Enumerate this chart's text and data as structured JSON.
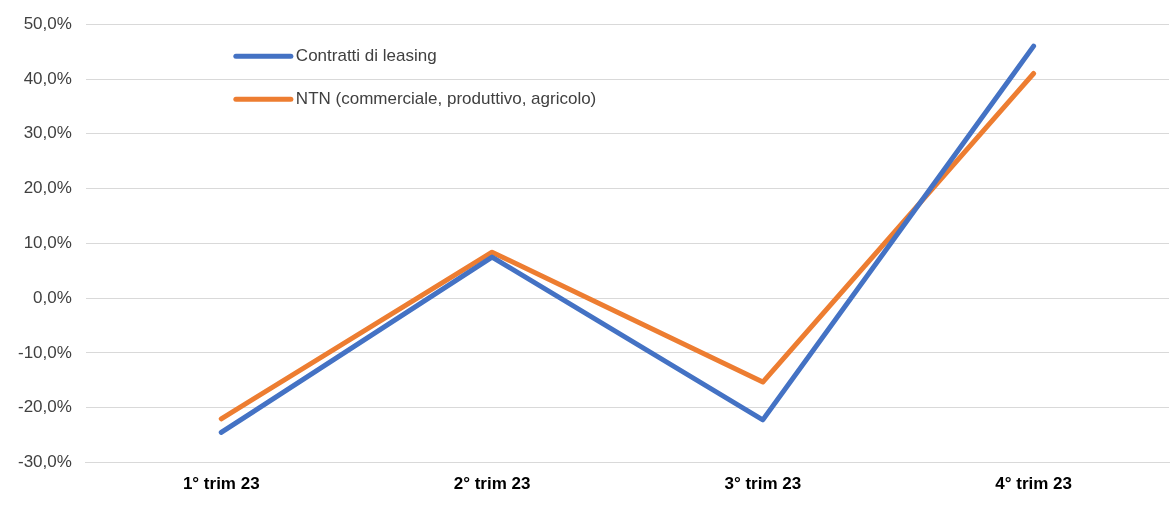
{
  "chart_data": {
    "type": "line",
    "categories": [
      "1° trim 23",
      "2° trim 23",
      "3° trim 23",
      "4° trim 23"
    ],
    "series": [
      {
        "name": "Contratti di leasing",
        "color": "#4472c4",
        "values": [
          -24.5,
          7.5,
          -22.2,
          46
        ]
      },
      {
        "name": "NTN (commerciale, produttivo, agricolo)",
        "color": "#ed7d31",
        "values": [
          -22,
          8.4,
          -15.3,
          41
        ]
      }
    ],
    "ylim": [
      -30,
      50
    ],
    "yticks": [
      {
        "value": -30,
        "label": "-30,0%"
      },
      {
        "value": -20,
        "label": "-20,0%"
      },
      {
        "value": -10,
        "label": "-10,0%"
      },
      {
        "value": 0,
        "label": "0,0%"
      },
      {
        "value": 10,
        "label": "10,0%"
      },
      {
        "value": 20,
        "label": "20,0%"
      },
      {
        "value": 30,
        "label": "30,0%"
      },
      {
        "value": 40,
        "label": "40,0%"
      },
      {
        "value": 50,
        "label": "50,0%"
      }
    ],
    "grid": "y",
    "legend": "top left",
    "marker": "none",
    "line_style": "solid"
  }
}
